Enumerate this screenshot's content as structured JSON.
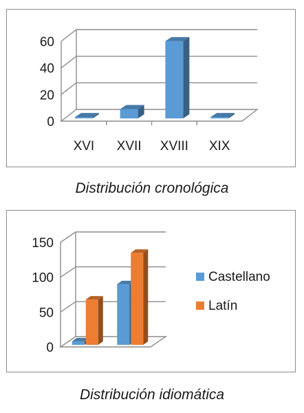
{
  "chart_data": [
    {
      "type": "bar",
      "title": "",
      "xlabel": "",
      "ylabel": "",
      "categories": [
        "XVI",
        "XVII",
        "XVIII",
        "XIX"
      ],
      "series": [
        {
          "values": [
            1,
            7,
            58,
            1
          ],
          "color": "#5b9bd5"
        }
      ],
      "y_ticks": [
        "0",
        "20",
        "40",
        "60"
      ],
      "ylim": [
        0,
        60
      ],
      "grid": true,
      "legend": "none",
      "style": "3d-column"
    },
    {
      "type": "bar",
      "title": "",
      "xlabel": "",
      "ylabel": "",
      "categories": [
        "",
        ""
      ],
      "series": [
        {
          "name": "Castellano",
          "values": [
            5,
            87
          ],
          "color": "#5b9bd5"
        },
        {
          "name": "Latín",
          "values": [
            65,
            132
          ],
          "color": "#ed7d31"
        }
      ],
      "y_ticks": [
        "0",
        "50",
        "100",
        "150"
      ],
      "ylim": [
        0,
        150
      ],
      "grid": true,
      "legend": "right",
      "style": "3d-column"
    }
  ],
  "captions": {
    "chart1": "Distribución cronológica",
    "chart2": "Distribución idiomática"
  }
}
